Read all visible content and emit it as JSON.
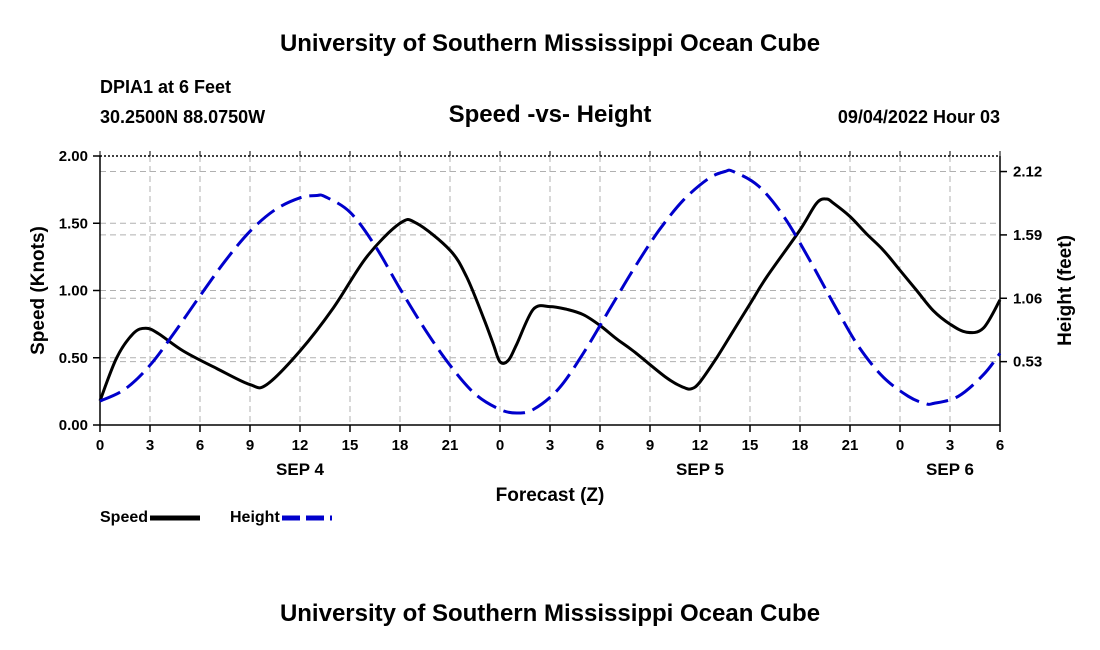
{
  "header": {
    "title": "University of Southern Mississippi Ocean Cube",
    "station": "DPIA1 at 6 Feet",
    "coords": "30.2500N  88.0750W",
    "subtitle": "Speed -vs- Height",
    "datetime": "09/04/2022 Hour 03"
  },
  "footer": {
    "title": "University of Southern Mississippi Ocean Cube"
  },
  "legend": {
    "speed_label": "Speed",
    "height_label": "Height"
  },
  "colors": {
    "speed": "#000000",
    "height": "#0000cc",
    "grid": "#b0b0b0"
  },
  "chart_data": {
    "type": "line",
    "title": "Speed -vs- Height",
    "xlabel": "Forecast (Z)",
    "ylabel": "Speed (Knots)",
    "y2label": "Height (feet)",
    "xlim": [
      0,
      54
    ],
    "ylim": [
      0,
      2
    ],
    "y2lim": [
      0,
      2.25
    ],
    "x_ticks": [
      0,
      3,
      6,
      9,
      12,
      15,
      18,
      21,
      24,
      27,
      30,
      33,
      36,
      39,
      42,
      45,
      48,
      51,
      54
    ],
    "x_tick_labels": [
      "0",
      "3",
      "6",
      "9",
      "12",
      "15",
      "18",
      "21",
      "0",
      "3",
      "6",
      "9",
      "12",
      "15",
      "18",
      "21",
      "0",
      "3",
      "6"
    ],
    "y_ticks": [
      0,
      0.5,
      1,
      1.5,
      2
    ],
    "y_tick_labels": [
      "0.00",
      "0.50",
      "1.00",
      "1.50",
      "2.00"
    ],
    "y2_ticks": [
      0.53,
      1.06,
      1.59,
      2.12
    ],
    "y2_tick_labels": [
      "0.53",
      "1.06",
      "1.59",
      "2.12"
    ],
    "date_labels": [
      {
        "x": 12,
        "label": "SEP 4"
      },
      {
        "x": 36,
        "label": "SEP 5"
      },
      {
        "x": 51,
        "label": "SEP 6"
      }
    ],
    "grid": true,
    "series": [
      {
        "name": "Speed",
        "axis": "left",
        "style": "solid",
        "x": [
          0,
          1,
          2,
          2.75,
          3.5,
          5,
          7,
          9,
          10,
          12,
          14,
          16,
          18,
          19,
          21,
          22,
          23,
          23.6,
          24,
          24.5,
          25,
          26,
          27,
          28,
          29,
          30,
          31,
          32,
          34,
          35,
          35.5,
          36,
          37,
          38,
          39,
          40,
          42,
          43,
          43.6,
          44,
          45,
          46,
          47,
          48,
          49,
          50,
          51,
          52,
          53,
          54
        ],
        "y": [
          0.18,
          0.5,
          0.68,
          0.72,
          0.68,
          0.55,
          0.42,
          0.3,
          0.3,
          0.55,
          0.87,
          1.25,
          1.5,
          1.5,
          1.3,
          1.1,
          0.8,
          0.6,
          0.47,
          0.48,
          0.6,
          0.86,
          0.88,
          0.86,
          0.82,
          0.74,
          0.64,
          0.55,
          0.35,
          0.28,
          0.27,
          0.32,
          0.5,
          0.7,
          0.9,
          1.1,
          1.45,
          1.65,
          1.68,
          1.65,
          1.55,
          1.42,
          1.3,
          1.15,
          1.0,
          0.85,
          0.75,
          0.69,
          0.72,
          0.93
        ]
      },
      {
        "name": "Height",
        "axis": "right",
        "style": "dashed",
        "x": [
          0,
          1.5,
          3,
          4.5,
          6,
          7.5,
          9,
          10.5,
          12,
          13,
          13.5,
          15,
          16.5,
          18,
          19.5,
          21,
          22.5,
          24,
          25,
          26,
          27.5,
          29,
          30.5,
          32,
          33.5,
          35,
          36.5,
          37.5,
          38,
          39.5,
          41,
          42.5,
          44,
          45.5,
          47,
          48.5,
          49.5,
          50,
          51.5,
          53,
          54
        ],
        "y": [
          0.2,
          0.3,
          0.5,
          0.78,
          1.08,
          1.37,
          1.62,
          1.8,
          1.9,
          1.92,
          1.91,
          1.78,
          1.5,
          1.14,
          0.8,
          0.5,
          0.26,
          0.13,
          0.1,
          0.13,
          0.3,
          0.6,
          0.95,
          1.3,
          1.62,
          1.88,
          2.06,
          2.12,
          2.12,
          2.0,
          1.75,
          1.4,
          1.02,
          0.66,
          0.4,
          0.24,
          0.18,
          0.18,
          0.24,
          0.42,
          0.6
        ]
      }
    ]
  }
}
